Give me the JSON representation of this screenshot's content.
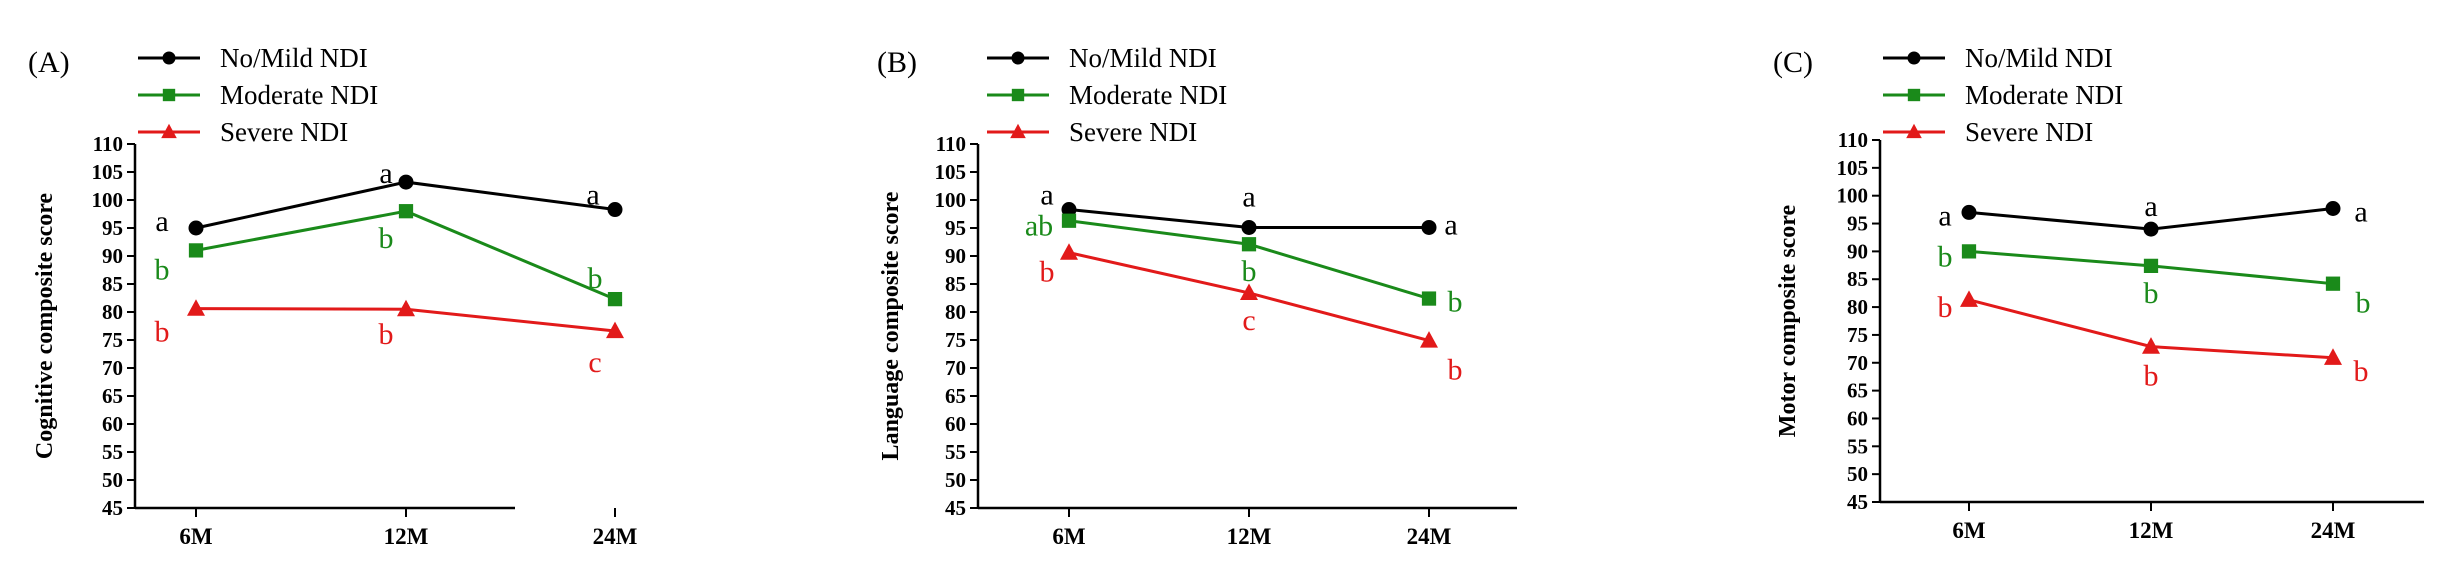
{
  "colors": {
    "axis": "#000000",
    "no_mild": "#000000",
    "moderate": "#1a8a1a",
    "severe": "#e21a1a"
  },
  "chart_data": [
    {
      "type": "line",
      "panel_label": "(A)",
      "title": "",
      "xlabel": "",
      "ylabel": "Cognitive composite score",
      "categories": [
        "6M",
        "12M",
        "24M"
      ],
      "ylim": [
        45,
        110
      ],
      "yticks": [
        45,
        50,
        55,
        60,
        65,
        70,
        75,
        80,
        85,
        90,
        95,
        100,
        105,
        110
      ],
      "grid": false,
      "legend_position": "top-left",
      "series": [
        {
          "name": "No/Mild NDI",
          "marker": "circle",
          "color": "#000000",
          "values": [
            95.0,
            103.2,
            98.3
          ],
          "labels": [
            "a",
            "a",
            "a"
          ]
        },
        {
          "name": "Moderate NDI",
          "marker": "square",
          "color": "#1a8a1a",
          "values": [
            91.0,
            98.0,
            82.3
          ],
          "labels": [
            "b",
            "b",
            "b"
          ]
        },
        {
          "name": "Severe NDI",
          "marker": "triangle",
          "color": "#e21a1a",
          "values": [
            80.6,
            80.5,
            76.6
          ],
          "labels": [
            "b",
            "b",
            "c"
          ]
        }
      ]
    },
    {
      "type": "line",
      "panel_label": "(B)",
      "title": "",
      "xlabel": "",
      "ylabel": "Language composite score",
      "categories": [
        "6M",
        "12M",
        "24M"
      ],
      "ylim": [
        45,
        110
      ],
      "yticks": [
        45,
        50,
        55,
        60,
        65,
        70,
        75,
        80,
        85,
        90,
        95,
        100,
        105,
        110
      ],
      "grid": false,
      "legend_position": "top-left",
      "series": [
        {
          "name": "No/Mild NDI",
          "marker": "circle",
          "color": "#000000",
          "values": [
            98.3,
            95.1,
            95.1
          ],
          "labels": [
            "a",
            "a",
            "a"
          ]
        },
        {
          "name": "Moderate NDI",
          "marker": "square",
          "color": "#1a8a1a",
          "values": [
            96.3,
            92.1,
            82.4
          ],
          "labels": [
            "ab",
            "b",
            "b"
          ]
        },
        {
          "name": "Severe NDI",
          "marker": "triangle",
          "color": "#e21a1a",
          "values": [
            90.6,
            83.4,
            74.9
          ],
          "labels": [
            "b",
            "c",
            "b"
          ]
        }
      ]
    },
    {
      "type": "line",
      "panel_label": "(C)",
      "title": "",
      "xlabel": "",
      "ylabel": "Motor composite score",
      "categories": [
        "6M",
        "12M",
        "24M"
      ],
      "ylim": [
        45,
        110
      ],
      "yticks": [
        45,
        50,
        55,
        60,
        65,
        70,
        75,
        80,
        85,
        90,
        95,
        100,
        105,
        110
      ],
      "grid": false,
      "legend_position": "top-left",
      "series": [
        {
          "name": "No/Mild NDI",
          "marker": "circle",
          "color": "#000000",
          "values": [
            97.0,
            94.0,
            97.7
          ],
          "labels": [
            "a",
            "a",
            "a"
          ]
        },
        {
          "name": "Moderate NDI",
          "marker": "square",
          "color": "#1a8a1a",
          "values": [
            90.0,
            87.4,
            84.2
          ],
          "labels": [
            "b",
            "b",
            "b"
          ]
        },
        {
          "name": "Severe NDI",
          "marker": "triangle",
          "color": "#e21a1a",
          "values": [
            81.3,
            72.9,
            70.9
          ],
          "labels": [
            "b",
            "b",
            "b"
          ]
        }
      ]
    }
  ]
}
